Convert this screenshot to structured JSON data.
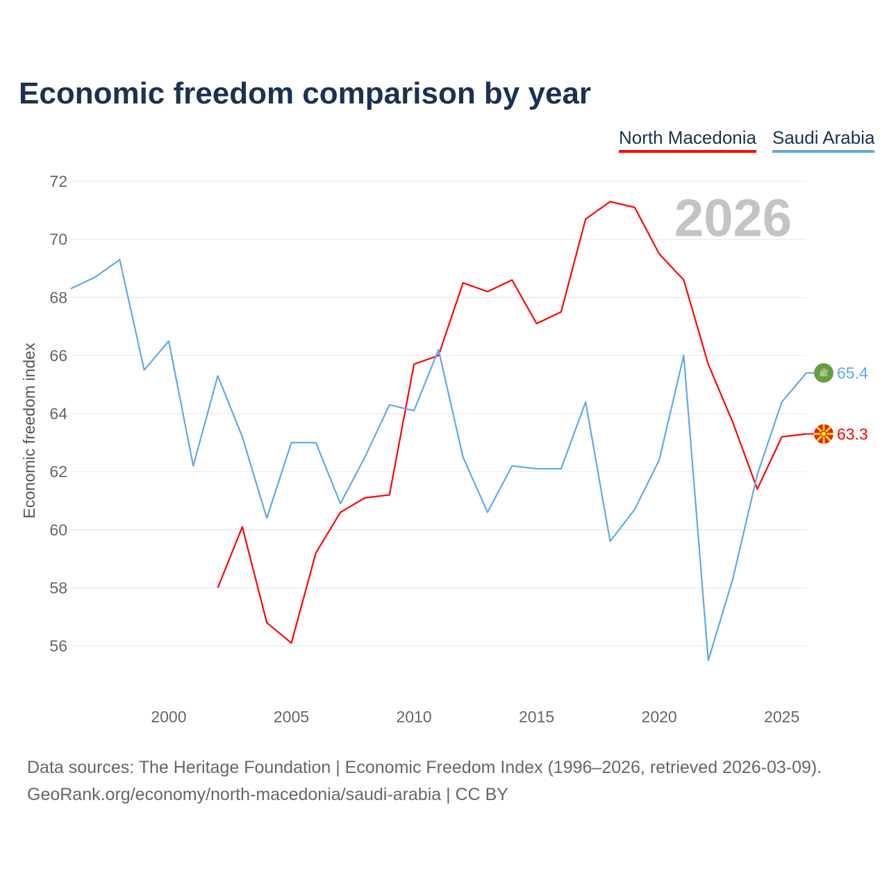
{
  "title": "Economic freedom comparison by year",
  "source_line1": "Data sources: The Heritage Foundation | Economic Freedom Index (1996–2026, retrieved 2026-03-09).",
  "source_line2": "GeoRank.org/economy/north-macedonia/saudi-arabia | CC BY",
  "chart_data": {
    "type": "line",
    "title": "Economic freedom comparison by year",
    "xlabel": "",
    "ylabel": "Economic freedom index",
    "xlim": [
      1996,
      2026
    ],
    "ylim": [
      56,
      72
    ],
    "y_ticks": [
      56,
      58,
      60,
      62,
      64,
      66,
      68,
      70,
      72
    ],
    "x_ticks": [
      2000,
      2005,
      2010,
      2015,
      2020,
      2025
    ],
    "grid": true,
    "legend_placement": "top-right",
    "year_label": "2026",
    "series": [
      {
        "name": "North Macedonia",
        "color": "#ff0000",
        "end_label": "63.3",
        "x": [
          2002,
          2003,
          2004,
          2005,
          2006,
          2007,
          2008,
          2009,
          2010,
          2011,
          2012,
          2013,
          2014,
          2015,
          2016,
          2017,
          2018,
          2019,
          2020,
          2021,
          2022,
          2023,
          2024,
          2025,
          2026
        ],
        "values": [
          58.0,
          60.1,
          56.8,
          56.1,
          59.2,
          60.6,
          61.1,
          61.2,
          65.7,
          66.0,
          68.5,
          68.2,
          68.6,
          67.1,
          67.5,
          70.7,
          71.3,
          71.1,
          69.5,
          68.6,
          65.7,
          63.7,
          61.4,
          63.2,
          63.3
        ]
      },
      {
        "name": "Saudi Arabia",
        "color": "#5fa8e8",
        "end_label": "65.4",
        "x": [
          1996,
          1997,
          1998,
          1999,
          2000,
          2001,
          2002,
          2003,
          2004,
          2005,
          2006,
          2007,
          2008,
          2009,
          2010,
          2011,
          2012,
          2013,
          2014,
          2015,
          2016,
          2017,
          2018,
          2019,
          2020,
          2021,
          2022,
          2023,
          2024,
          2025,
          2026
        ],
        "values": [
          68.3,
          68.7,
          69.3,
          65.5,
          66.5,
          62.2,
          65.3,
          63.2,
          60.4,
          63.0,
          63.0,
          60.9,
          62.5,
          64.3,
          64.1,
          66.2,
          62.5,
          60.6,
          62.2,
          62.1,
          62.1,
          64.4,
          59.6,
          60.7,
          62.4,
          66.0,
          55.5,
          58.3,
          61.9,
          64.4,
          65.4
        ]
      }
    ]
  }
}
